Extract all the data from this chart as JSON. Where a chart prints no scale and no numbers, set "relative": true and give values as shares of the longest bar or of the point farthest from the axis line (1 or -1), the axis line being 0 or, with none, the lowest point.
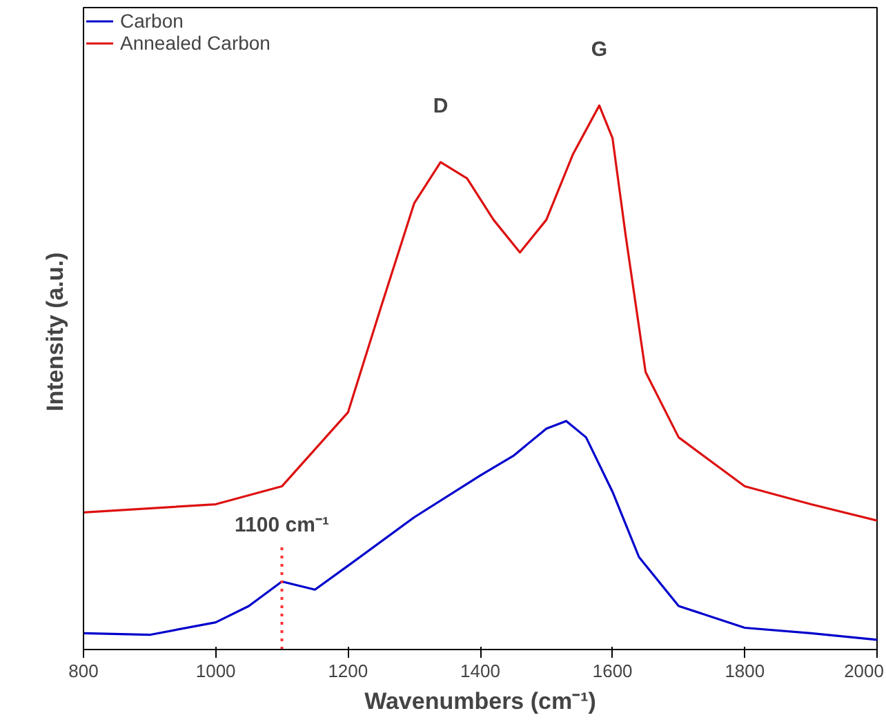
{
  "chart_data": {
    "type": "line",
    "relative": true,
    "xlabel": "Wavenumbers (cm⁻¹)",
    "ylabel": "Intensity  (a.u.)",
    "xlim": [
      800,
      2000
    ],
    "xticks": [
      800,
      1000,
      1200,
      1400,
      1600,
      1800,
      2000
    ],
    "grid": false,
    "legend": "top left",
    "tick_labels": "x",
    "series": [
      {
        "name": "Carbon",
        "color": "#0000cc",
        "x": [
          800,
          900,
          1000,
          1050,
          1100,
          1150,
          1200,
          1300,
          1400,
          1450,
          1500,
          1530,
          1560,
          1600,
          1640,
          1700,
          1800,
          1900,
          2000
        ],
        "values": [
          0.03,
          0.027,
          0.05,
          0.08,
          0.125,
          0.11,
          0.154,
          0.243,
          0.32,
          0.356,
          0.406,
          0.42,
          0.39,
          0.29,
          0.17,
          0.08,
          0.04,
          0.03,
          0.018
        ]
      },
      {
        "name": "Annealed Carbon",
        "color": "#dd1111",
        "x": [
          800,
          1000,
          1100,
          1200,
          1250,
          1300,
          1340,
          1380,
          1420,
          1460,
          1500,
          1540,
          1580,
          1600,
          1620,
          1650,
          1700,
          1800,
          1900,
          2000
        ],
        "values": [
          0.252,
          0.267,
          0.3,
          0.436,
          0.63,
          0.82,
          0.896,
          0.866,
          0.79,
          0.73,
          0.79,
          0.91,
          1,
          0.94,
          0.76,
          0.51,
          0.39,
          0.3,
          0.267,
          0.237
        ]
      }
    ],
    "ref_lines": [
      {
        "axis": "x",
        "value": 1100,
        "color": "#ff3333",
        "line_style": "dotted"
      }
    ],
    "annotations": [
      {
        "text": "1100 cm⁻¹",
        "x": 1100,
        "y": 0.125
      },
      {
        "text": "D",
        "x": 1340,
        "y": 0.896
      },
      {
        "text": "G",
        "x": 1580,
        "y": 1
      }
    ]
  }
}
